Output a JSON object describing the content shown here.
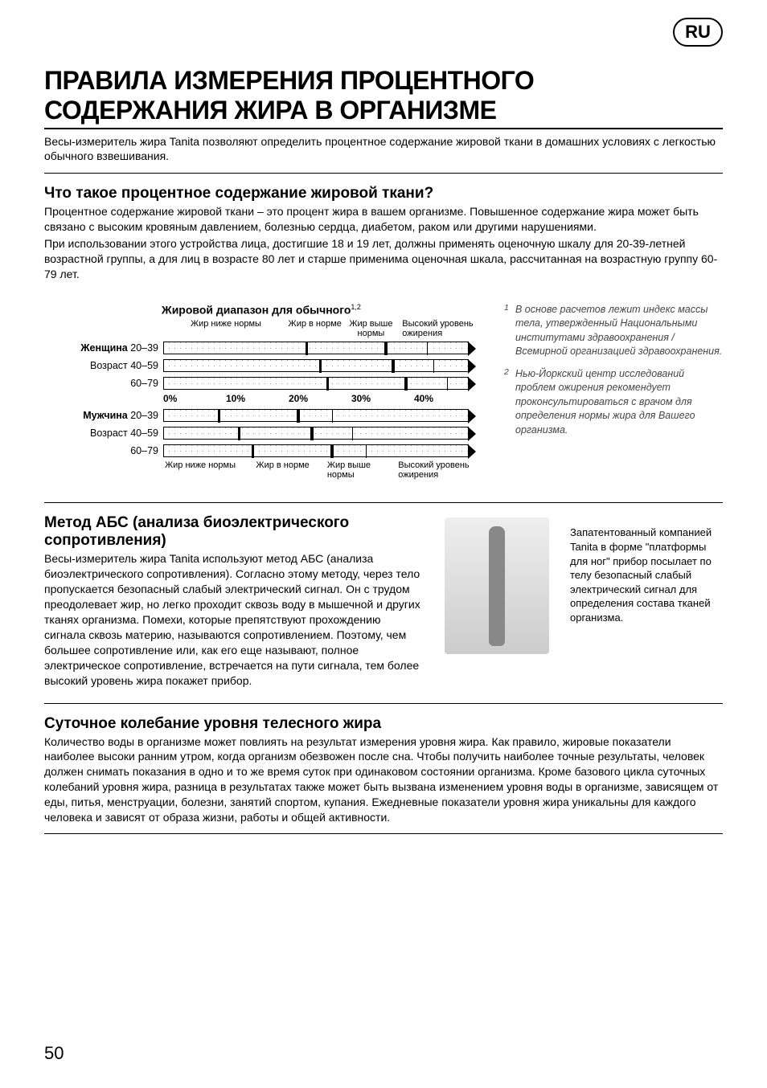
{
  "lang_badge": "RU",
  "page_number": "50",
  "main_title": "ПРАВИЛА ИЗМЕРЕНИЯ ПРОЦЕНТНОГО СОДЕРЖАНИЯ ЖИРА В ОРГАНИЗМЕ",
  "intro": "Весы-измеритель жира Tanita позволяют определить процентное содержание жировой ткани в домашних условиях с легкостью обычного взвешивания.",
  "section1_title": "Что такое процентное содержание жировой ткани?",
  "section1_body1": "Процентное содержание жировой ткани – это процент жира в вашем организме. Повышенное содержание жира может быть связано с высоким кровяным давлением, болезнью сердца, диабетом, раком или другими нарушениями.",
  "section1_body2": "При использовании этого устройства лица, достигшие 18 и 19 лет, должны применять оценочную шкалу для 20-39-летней возрастной группы, а для лиц в возрасте 80 лет и старше применима оценочная шкала, рассчитанная на возрастную группу 60-79 лет.",
  "chart": {
    "caption": "Жировой диапазон для обычного",
    "caption_sup": "1,2",
    "top_labels": [
      "Жир ниже нормы",
      "Жир в норме",
      "Жир выше нормы",
      "Высокий уровень ожирения"
    ],
    "bottom_labels": [
      "Жир ниже нормы",
      "Жир в норме",
      "Жир выше нормы",
      "Высокий уровень ожирения"
    ],
    "axis": [
      "0%",
      "10%",
      "20%",
      "30%",
      "40%"
    ],
    "female_label": "Женщина",
    "male_label": "Мужчина",
    "age_label": "Возраст",
    "female_rows": [
      {
        "age": "20–39",
        "healthy": [
          21,
          33
        ],
        "over": [
          33,
          39
        ]
      },
      {
        "age": "40–59",
        "healthy": [
          23,
          34
        ],
        "over": [
          34,
          40
        ]
      },
      {
        "age": "60–79",
        "healthy": [
          24,
          36
        ],
        "over": [
          36,
          42
        ]
      }
    ],
    "male_rows": [
      {
        "age": "20–39",
        "healthy": [
          8,
          20
        ],
        "over": [
          20,
          25
        ]
      },
      {
        "age": "40–59",
        "healthy": [
          11,
          22
        ],
        "over": [
          22,
          28
        ]
      },
      {
        "age": "60–79",
        "healthy": [
          13,
          25
        ],
        "over": [
          25,
          30
        ]
      }
    ],
    "scale_max": 45
  },
  "footnote1": "В основе расчетов лежит индекс массы тела, утвержденный Национальными институтами здравоохранения / Всемирной организацией здравоохранения.",
  "footnote2": "Нью-Йоркский центр исследований проблем ожирения рекомендует проконсультироваться с врачом для определения нормы жира для Вашего организма.",
  "bia_title": "Метод АБС (анализа биоэлектрического сопротивления)",
  "bia_body": "Весы-измеритель жира Tanita используют метод АБС (анализа биоэлектрического сопротивления). Согласно этому методу, через тело пропускается безопасный слабый электрический сигнал. Он с трудом преодолевает жир, но легко проходит сквозь воду в мышечной и других тканях организма. Помехи, которые препятствуют прохождению сигнала сквозь материю, называются  сопротивлением. Поэтому, чем большее сопротивление или, как его еще называют, полное электрическое сопротивление, встречается на пути сигнала, тем более высокий уровень жира покажет прибор.",
  "bia_caption": "Запатентованный компанией Tanita в форме \"платформы для ног\" прибор посылает по телу безопасный слабый электрический сигнал для определения состава тканей организма.",
  "daily_title": "Суточное колебание уровня телесного жира",
  "daily_body": "Количество воды в организме может повлиять на результат измерения уровня жира. Как правило, жировые показатели наиболее высоки ранним утром, когда организм обезвожен после сна. Чтобы получить наиболее точные результаты, человек должен снимать показания в одно и то же время суток при одинаковом состоянии организма. Кроме базового цикла суточных колебаний уровня жира, разница в результатах также может быть вызвана изменением уровня воды в организме, зависящем от еды, питья, менструации, болезни, занятий спортом, купания. Ежедневные показатели уровня жира уникальны для каждого человека и зависят от образа жизни, работы и общей активности."
}
